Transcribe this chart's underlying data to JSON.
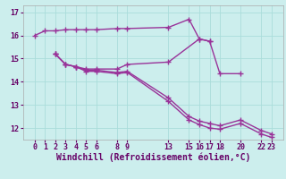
{
  "background_color": "#cceeed",
  "grid_color": "#aaddda",
  "line_color": "#993399",
  "line_width": 1.0,
  "marker": "+",
  "marker_size": 4,
  "marker_edge_width": 1.0,
  "xlabel": "Windchill (Refroidissement éolien,°C)",
  "xlabel_fontsize": 7,
  "tick_fontsize": 6,
  "ylim": [
    11.5,
    17.3
  ],
  "yticks": [
    12,
    13,
    14,
    15,
    16,
    17
  ],
  "xticks": [
    0,
    1,
    2,
    3,
    4,
    5,
    6,
    8,
    9,
    13,
    15,
    16,
    17,
    18,
    20,
    22,
    23
  ],
  "lines": [
    {
      "x": [
        0,
        1,
        2,
        3,
        4,
        5,
        6,
        8,
        9,
        13,
        15,
        16,
        17
      ],
      "y": [
        16.0,
        16.2,
        16.2,
        16.25,
        16.25,
        16.25,
        16.25,
        16.3,
        16.3,
        16.35,
        16.7,
        15.85,
        15.75
      ]
    },
    {
      "x": [
        2,
        3,
        4,
        5,
        6,
        8,
        9,
        13,
        16,
        17,
        18,
        20
      ],
      "y": [
        15.2,
        14.75,
        14.65,
        14.55,
        14.55,
        14.55,
        14.75,
        14.85,
        15.85,
        15.75,
        14.35,
        14.35
      ]
    },
    {
      "x": [
        2,
        3,
        4,
        5,
        6,
        8,
        9,
        13,
        15,
        16,
        17,
        18,
        20,
        22,
        23
      ],
      "y": [
        15.2,
        14.75,
        14.65,
        14.5,
        14.5,
        14.4,
        14.45,
        13.3,
        12.5,
        12.3,
        12.2,
        12.1,
        12.35,
        11.9,
        11.75
      ]
    },
    {
      "x": [
        2,
        3,
        4,
        5,
        6,
        8,
        9,
        13,
        15,
        16,
        17,
        18,
        20,
        22,
        23
      ],
      "y": [
        15.2,
        14.75,
        14.65,
        14.45,
        14.45,
        14.35,
        14.4,
        13.15,
        12.35,
        12.15,
        12.0,
        11.95,
        12.2,
        11.75,
        11.6
      ]
    }
  ]
}
